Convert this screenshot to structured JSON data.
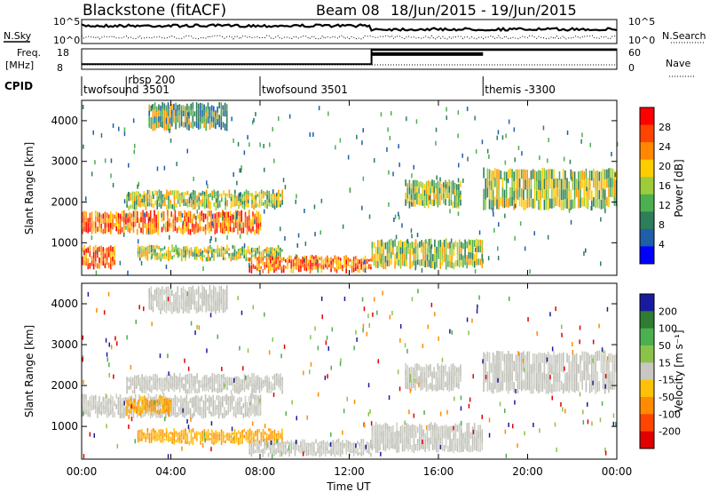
{
  "header": {
    "station": "Blackstone (fitACF)",
    "beam": "Beam 08",
    "date_range": "18/Jun/2015 - 19/Jun/2015"
  },
  "summary_panels": {
    "nsky_label": "N.Sky",
    "nsearch_label": "N.Search",
    "nsky_ticks": [
      "10^5",
      "10^0"
    ],
    "nsearch_ticks": [
      "10^5",
      "10^0"
    ],
    "freq_label_line1": "Freq.",
    "freq_label_line2": "[MHz]",
    "freq_ticks": [
      "18",
      "8"
    ],
    "nave_label": "Nave",
    "nave_ticks": [
      "60",
      "0"
    ],
    "cpid_label": "CPID",
    "cpid_segments": [
      {
        "name": "twofsound 3501",
        "start": 0.0
      },
      {
        "name": "rbsp 200",
        "start": 2.0
      },
      {
        "name": "twofsound 3501",
        "start": 8.0
      },
      {
        "name": "themis -3300",
        "start": 18.0
      }
    ],
    "freq_mhz": [
      {
        "start": 0.0,
        "end": 13.0,
        "value": 10.5
      },
      {
        "start": 13.0,
        "end": 24.0,
        "value": 17.5
      }
    ],
    "nave_band": {
      "start": 13.0,
      "end": 18.0,
      "value": 50
    }
  },
  "chart_data": [
    {
      "type": "heatmap",
      "parameter": "Power",
      "ylabel": "Slant Range [km]",
      "xlabel": "",
      "xlim": [
        0,
        24
      ],
      "ylim": [
        200,
        4500
      ],
      "y_ticks": [
        "1000",
        "2000",
        "3000",
        "4000"
      ],
      "x_ticks": [
        "00:00",
        "04:00",
        "08:00",
        "12:00",
        "16:00",
        "20:00",
        "00:00"
      ],
      "colorbar": {
        "label": "Power [dB]",
        "ticks": [
          "28",
          "24",
          "20",
          "16",
          "12",
          "8",
          "4"
        ],
        "colors": [
          "#ff0000",
          "#ff4400",
          "#ff8800",
          "#ffcc00",
          "#9ccc3a",
          "#4caf50",
          "#2e7d5b",
          "#1e5fa8",
          "#0000ff"
        ]
      },
      "echo_regions": [
        {
          "t0": 0.0,
          "t1": 8.0,
          "r0": 1250,
          "r1": 1750,
          "level": "high"
        },
        {
          "t0": 0.0,
          "t1": 1.5,
          "r0": 400,
          "r1": 900,
          "level": "high"
        },
        {
          "t0": 2.0,
          "t1": 9.0,
          "r0": 1850,
          "r1": 2250,
          "level": "medium"
        },
        {
          "t0": 2.5,
          "t1": 9.0,
          "r0": 600,
          "r1": 900,
          "level": "medium"
        },
        {
          "t0": 7.5,
          "t1": 13.0,
          "r0": 300,
          "r1": 650,
          "level": "high"
        },
        {
          "t0": 13.0,
          "t1": 18.0,
          "r0": 400,
          "r1": 1050,
          "level": "medium"
        },
        {
          "t0": 14.5,
          "t1": 17.0,
          "r0": 1900,
          "r1": 2500,
          "level": "medium"
        },
        {
          "t0": 18.0,
          "t1": 24.0,
          "r0": 1850,
          "r1": 2800,
          "level": "medium"
        },
        {
          "t0": 3.0,
          "t1": 6.5,
          "r0": 3800,
          "r1": 4400,
          "level": "low"
        }
      ]
    },
    {
      "type": "heatmap",
      "parameter": "Velocity",
      "ylabel": "Slant Range [km]",
      "xlabel": "Time UT",
      "xlim": [
        0,
        24
      ],
      "ylim": [
        200,
        4500
      ],
      "y_ticks": [
        "1000",
        "2000",
        "3000",
        "4000"
      ],
      "x_ticks": [
        "00:00",
        "04:00",
        "08:00",
        "12:00",
        "16:00",
        "20:00",
        "00:00"
      ],
      "colorbar": {
        "label": "Velocity [m s⁻¹]",
        "ticks": [
          "200",
          "100",
          "50",
          "15",
          "-15",
          "-50",
          "-100",
          "-200"
        ],
        "colors": [
          "#1a1aa0",
          "#2e7d32",
          "#4caf50",
          "#8bc34a",
          "#c8c8c0",
          "#ffc107",
          "#ff8c00",
          "#ff4500",
          "#e00000"
        ]
      },
      "echo_regions": [
        {
          "t0": 0.0,
          "t1": 8.0,
          "r0": 1250,
          "r1": 1750,
          "level": "grey"
        },
        {
          "t0": 2.0,
          "t1": 4.0,
          "r0": 1300,
          "r1": 1700,
          "level": "orange"
        },
        {
          "t0": 2.5,
          "t1": 9.0,
          "r0": 600,
          "r1": 900,
          "level": "orange"
        },
        {
          "t0": 2.0,
          "t1": 9.0,
          "r0": 1850,
          "r1": 2250,
          "level": "grey"
        },
        {
          "t0": 7.5,
          "t1": 13.0,
          "r0": 300,
          "r1": 650,
          "level": "grey"
        },
        {
          "t0": 13.0,
          "t1": 18.0,
          "r0": 400,
          "r1": 1050,
          "level": "grey"
        },
        {
          "t0": 14.5,
          "t1": 17.0,
          "r0": 1900,
          "r1": 2500,
          "level": "grey"
        },
        {
          "t0": 18.0,
          "t1": 24.0,
          "r0": 1850,
          "r1": 2800,
          "level": "grey"
        },
        {
          "t0": 3.0,
          "t1": 6.5,
          "r0": 3800,
          "r1": 4400,
          "level": "grey"
        }
      ]
    }
  ]
}
